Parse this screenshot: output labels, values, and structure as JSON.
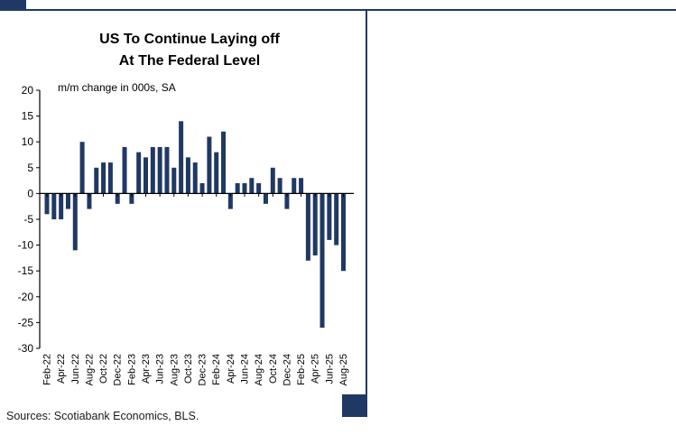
{
  "colors": {
    "accent_navy": "#203864",
    "bar_navy": "#203864",
    "axis_black": "#000000"
  },
  "chart": {
    "title_line1": "US To Continue Laying off",
    "title_line2": "At The Federal Level",
    "subtitle": "m/m change in 000s, SA",
    "sources": "Sources: Scotiabank Economics, BLS."
  },
  "chart_data": {
    "type": "bar",
    "title": "US To Continue Laying off At The Federal Level",
    "subtitle": "m/m change in 000s, SA",
    "xlabel": "",
    "ylabel": "",
    "ylim": [
      -30,
      20
    ],
    "ytick_step": 5,
    "x_label_every": 2,
    "grid": false,
    "legend": "none",
    "bar_color": "#203864",
    "axis_color": "#000000",
    "categories": [
      "Feb-22",
      "Mar-22",
      "Apr-22",
      "May-22",
      "Jun-22",
      "Jul-22",
      "Aug-22",
      "Sep-22",
      "Oct-22",
      "Nov-22",
      "Dec-22",
      "Jan-23",
      "Feb-23",
      "Mar-23",
      "Apr-23",
      "May-23",
      "Jun-23",
      "Jul-23",
      "Aug-23",
      "Sep-23",
      "Oct-23",
      "Nov-23",
      "Dec-23",
      "Jan-24",
      "Feb-24",
      "Mar-24",
      "Apr-24",
      "May-24",
      "Jun-24",
      "Jul-24",
      "Aug-24",
      "Sep-24",
      "Oct-24",
      "Nov-24",
      "Dec-24",
      "Jan-25",
      "Feb-25",
      "Mar-25",
      "Apr-25",
      "May-25",
      "Jun-25",
      "Jul-25",
      "Aug-25"
    ],
    "values": [
      -4,
      -5,
      -5,
      -3,
      -11,
      10,
      -3,
      5,
      6,
      6,
      -2,
      9,
      -2,
      8,
      7,
      9,
      9,
      9,
      5,
      14,
      7,
      6,
      2,
      11,
      8,
      12,
      -3,
      2,
      2,
      3,
      2,
      -2,
      5,
      3,
      -3,
      3,
      3,
      -13,
      -12,
      -26,
      -9,
      -10,
      -15
    ],
    "sources": "Sources: Scotiabank Economics, BLS."
  }
}
